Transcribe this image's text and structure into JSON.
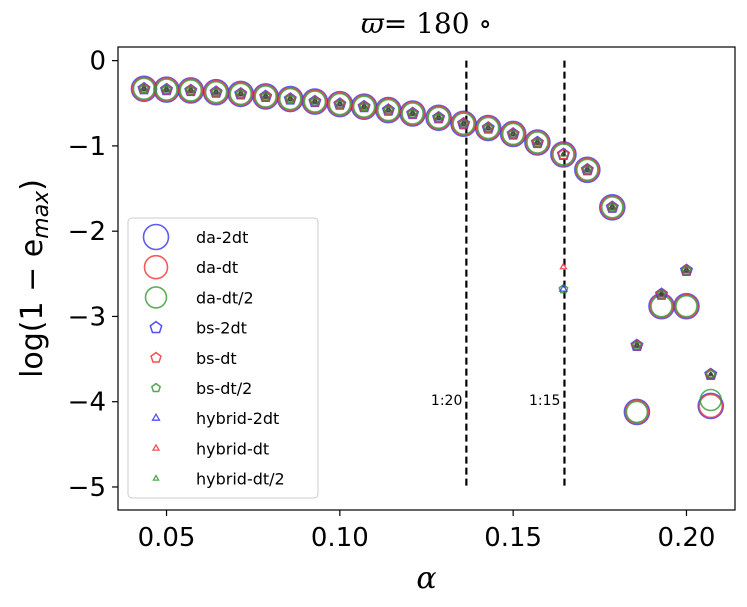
{
  "chart_data": {
    "type": "scatter",
    "title_symbol": "ϖ",
    "title_rest": "= 180 ∘",
    "xlabel": "α",
    "ylabel_pre": "log(1 − e",
    "ylabel_sub": "max",
    "ylabel_post": ")",
    "xlim": [
      0.036,
      0.214
    ],
    "ylim": [
      -5.27,
      0.16
    ],
    "xticks": [
      0.05,
      0.1,
      0.15,
      0.2
    ],
    "xtick_labels": [
      "0.05",
      "0.10",
      "0.15",
      "0.20"
    ],
    "yticks": [
      0,
      -1,
      -2,
      -3,
      -4,
      -5
    ],
    "ytick_labels": [
      "0",
      "−1",
      "−2",
      "−3",
      "−4",
      "−5"
    ],
    "vlines": [
      {
        "x": 0.1365,
        "y0": -5.0,
        "y1": 0.0,
        "label": "1:20",
        "label_y": -3.98
      },
      {
        "x": 0.1648,
        "y0": -5.0,
        "y1": 0.0,
        "label": "1:15",
        "label_y": -3.98
      }
    ],
    "x": [
      0.0435,
      0.05,
      0.057,
      0.0643,
      0.0714,
      0.0786,
      0.0857,
      0.0928,
      0.1,
      0.107,
      0.114,
      0.121,
      0.1285,
      0.1357,
      0.1428,
      0.15,
      0.157,
      0.1645,
      0.1714,
      0.1786,
      0.1857,
      0.1928,
      0.2,
      0.207
    ],
    "series": [
      {
        "name": "da-2dt",
        "marker": "circle-large",
        "color": "#3333ee",
        "values": [
          -0.33,
          -0.34,
          -0.35,
          -0.37,
          -0.39,
          -0.42,
          -0.45,
          -0.48,
          -0.51,
          -0.54,
          -0.58,
          -0.62,
          -0.67,
          -0.74,
          -0.79,
          -0.86,
          -0.96,
          -1.1,
          -1.28,
          -1.72,
          -4.12,
          -2.88,
          -2.88,
          -4.05
        ]
      },
      {
        "name": "da-dt",
        "marker": "circle-large",
        "color": "#ee3333",
        "values": [
          -0.33,
          -0.34,
          -0.35,
          -0.37,
          -0.39,
          -0.42,
          -0.45,
          -0.48,
          -0.51,
          -0.54,
          -0.58,
          -0.62,
          -0.67,
          -0.74,
          -0.79,
          -0.86,
          -0.96,
          -1.1,
          -1.28,
          -1.72,
          -4.12,
          -2.88,
          -2.88,
          -4.05
        ]
      },
      {
        "name": "da-dt/2",
        "marker": "circle-large",
        "color": "#339933",
        "values": [
          -0.33,
          -0.34,
          -0.35,
          -0.37,
          -0.39,
          -0.42,
          -0.45,
          -0.48,
          -0.51,
          -0.54,
          -0.58,
          -0.62,
          -0.67,
          -0.74,
          -0.79,
          -0.86,
          -0.96,
          -1.1,
          -1.28,
          -1.72,
          -4.12,
          -2.88,
          -2.88,
          -3.98
        ]
      },
      {
        "name": "bs-2dt",
        "marker": "pentagon",
        "color": "#3333ee",
        "values": [
          -0.33,
          -0.34,
          -0.35,
          -0.37,
          -0.39,
          -0.42,
          -0.45,
          -0.48,
          -0.51,
          -0.54,
          -0.58,
          -0.62,
          -0.67,
          -0.74,
          -0.79,
          -0.86,
          -0.96,
          -1.1,
          -1.28,
          -1.72,
          -3.34,
          -2.74,
          -2.46,
          -3.68
        ]
      },
      {
        "name": "bs-dt",
        "marker": "pentagon",
        "color": "#ee3333",
        "values": [
          -0.33,
          -0.34,
          -0.35,
          -0.37,
          -0.39,
          -0.42,
          -0.45,
          -0.48,
          -0.51,
          -0.54,
          -0.58,
          -0.62,
          -0.67,
          -0.74,
          -0.79,
          -0.86,
          -0.96,
          -1.1,
          -1.28,
          -1.72,
          -3.34,
          -2.74,
          -2.46,
          -3.68
        ]
      },
      {
        "name": "bs-dt/2",
        "marker": "pentagon",
        "color": "#339933",
        "values": [
          -0.33,
          -0.34,
          -0.35,
          -0.37,
          -0.39,
          -0.42,
          -0.45,
          -0.48,
          -0.51,
          -0.54,
          -0.58,
          -0.62,
          -0.67,
          -0.74,
          -0.79,
          -0.86,
          -0.96,
          -2.68,
          -1.28,
          -1.72,
          -3.34,
          -2.74,
          -2.46,
          -3.68
        ]
      },
      {
        "name": "hybrid-2dt",
        "marker": "triangle",
        "color": "#3333ee",
        "values": [
          -0.33,
          -0.34,
          -0.35,
          -0.37,
          -0.39,
          -0.42,
          -0.45,
          -0.48,
          -0.51,
          -0.54,
          -0.58,
          -0.62,
          -0.67,
          -0.74,
          -0.79,
          -0.86,
          -0.96,
          -2.68,
          -1.28,
          -1.72,
          -3.34,
          -2.74,
          -2.46,
          -3.7
        ]
      },
      {
        "name": "hybrid-dt",
        "marker": "triangle",
        "color": "#ee3333",
        "values": [
          -0.33,
          -0.34,
          -0.35,
          -0.37,
          -0.39,
          -0.42,
          -0.45,
          -0.48,
          -0.51,
          -0.54,
          -0.58,
          -0.62,
          -0.67,
          -0.74,
          -0.79,
          -0.86,
          -0.96,
          -2.42,
          -1.28,
          -1.72,
          -3.34,
          -2.74,
          -2.46,
          -3.7
        ]
      },
      {
        "name": "hybrid-dt/2",
        "marker": "triangle",
        "color": "#339933",
        "values": [
          -0.33,
          -0.34,
          -0.35,
          -0.37,
          -0.39,
          -0.42,
          -0.45,
          -0.48,
          -0.51,
          -0.54,
          -0.58,
          -0.62,
          -0.67,
          -0.74,
          -0.79,
          -0.86,
          -0.96,
          -1.1,
          -1.28,
          -1.72,
          -3.34,
          -2.74,
          -2.46,
          -3.7
        ]
      }
    ],
    "legend_placement": "lower-left"
  }
}
